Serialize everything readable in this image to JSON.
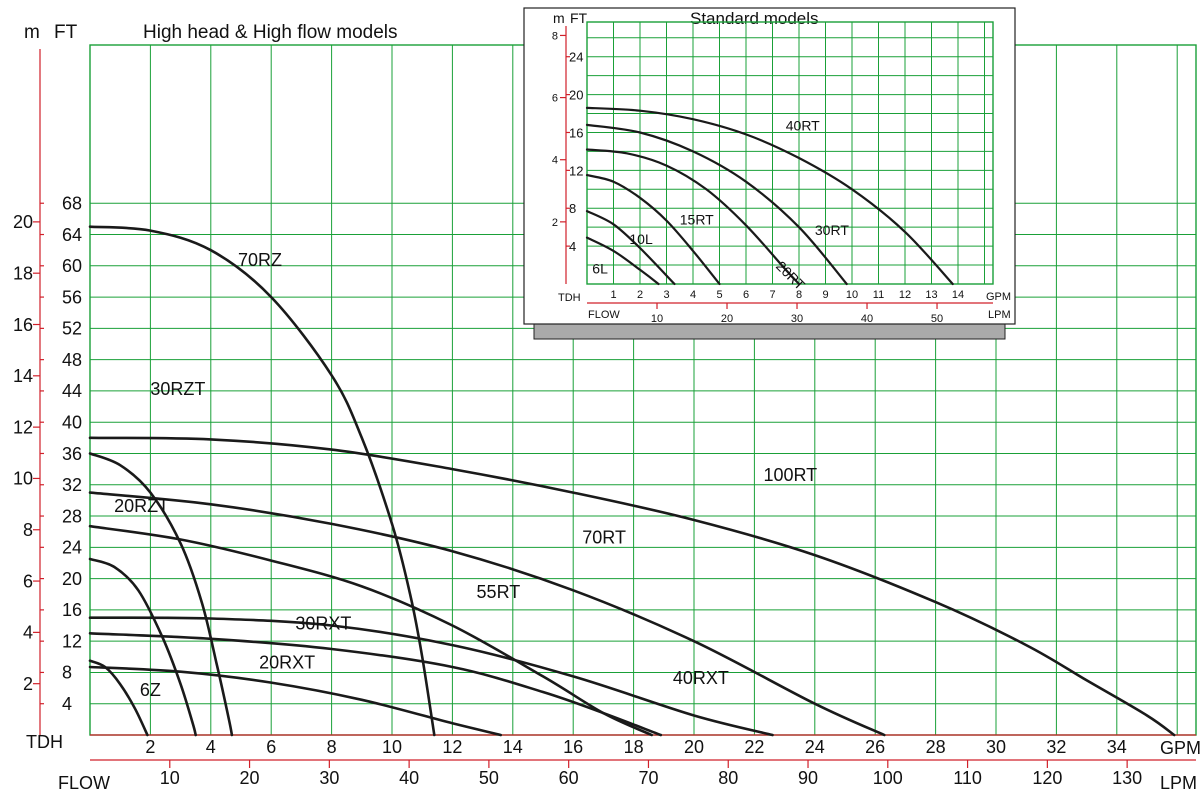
{
  "colors": {
    "grid": "#1aa038",
    "axis": "#d0202a",
    "curve": "#1a1a1a",
    "inset_shadow": "#aaaaaa"
  },
  "main": {
    "title": "High head & High flow models",
    "m_label": "m",
    "ft_label": "FT",
    "tdh_label": "TDH",
    "flow_label": "FLOW",
    "gpm_label": "GPM",
    "lpm_label": "LPM"
  },
  "inset": {
    "title": "Standard models",
    "m_label": "m",
    "ft_label": "FT",
    "tdh_label": "TDH",
    "flow_label": "FLOW",
    "gpm_label": "GPM",
    "lpm_label": "LPM"
  },
  "chart_data": [
    {
      "type": "line",
      "title": "High head & High flow models",
      "xlabel": "GPM",
      "ylabel": "FT",
      "xlim": [
        0,
        36.5
      ],
      "ylim": [
        0,
        72
      ],
      "grid": true,
      "gpm_ticks": [
        2,
        4,
        6,
        8,
        10,
        12,
        14,
        16,
        18,
        20,
        22,
        24,
        26,
        28,
        30,
        32,
        34
      ],
      "lpm_ticks": [
        10,
        20,
        30,
        40,
        50,
        60,
        70,
        80,
        90,
        100,
        110,
        120,
        130
      ],
      "ft_ticks": [
        4,
        8,
        12,
        16,
        20,
        24,
        28,
        32,
        36,
        40,
        44,
        48,
        52,
        56,
        60,
        64,
        68
      ],
      "m_ticks": [
        2,
        4,
        6,
        8,
        10,
        12,
        14,
        16,
        18,
        20
      ],
      "series": [
        {
          "name": "70RZ",
          "x": [
            0,
            2,
            4,
            6,
            8,
            9,
            10,
            10.6,
            11,
            11.4
          ],
          "y": [
            65,
            64.5,
            62,
            56,
            46,
            38,
            27,
            18,
            10,
            0
          ]
        },
        {
          "name": "100RT",
          "x": [
            0,
            4,
            8,
            12,
            16,
            20,
            24,
            28,
            31,
            33,
            35,
            35.9
          ],
          "y": [
            38,
            37.8,
            36.5,
            34,
            31,
            27.5,
            23,
            17,
            11.5,
            7,
            2.5,
            0
          ]
        },
        {
          "name": "30RZT",
          "x": [
            0,
            1,
            2,
            3,
            3.7,
            4.2,
            4.6,
            4.7
          ],
          "y": [
            36,
            34.5,
            31,
            24.5,
            17,
            9,
            2,
            0
          ]
        },
        {
          "name": "70RT",
          "x": [
            0,
            4,
            8,
            12,
            16,
            20,
            24,
            26.3
          ],
          "y": [
            31,
            29.5,
            27,
            23.5,
            18.5,
            12,
            4,
            0
          ]
        },
        {
          "name": "55RT",
          "x": [
            0,
            3,
            6,
            9,
            12,
            15,
            17,
            18.6
          ],
          "y": [
            26.7,
            25,
            22.3,
            19,
            14,
            7.5,
            2.8,
            0
          ]
        },
        {
          "name": "20RZT",
          "x": [
            0,
            0.8,
            1.6,
            2.4,
            3,
            3.4,
            3.5
          ],
          "y": [
            22.5,
            21.5,
            18.5,
            12.5,
            6.5,
            1.5,
            0
          ]
        },
        {
          "name": "40RXT",
          "x": [
            0,
            4,
            8,
            12,
            16,
            20,
            22.6
          ],
          "y": [
            15,
            14.9,
            14,
            11.5,
            7.5,
            2.5,
            0
          ]
        },
        {
          "name": "30RXT",
          "x": [
            0,
            4,
            8,
            12,
            15,
            17,
            18.9
          ],
          "y": [
            13,
            12.3,
            11,
            8.7,
            5.5,
            2.8,
            0
          ]
        },
        {
          "name": "20RXT",
          "x": [
            0,
            3,
            6,
            9,
            12,
            13.6
          ],
          "y": [
            8.7,
            8.1,
            6.7,
            4.5,
            1.5,
            0
          ]
        },
        {
          "name": "6Z",
          "x": [
            0,
            0.5,
            1,
            1.5,
            1.9
          ],
          "y": [
            9.5,
            8.7,
            6.5,
            3.3,
            0
          ]
        }
      ]
    },
    {
      "type": "line",
      "title": "Standard models",
      "xlabel": "GPM",
      "ylabel": "FT",
      "xlim": [
        0,
        15
      ],
      "ylim": [
        0,
        27.5
      ],
      "grid": true,
      "gpm_ticks": [
        1,
        2,
        3,
        4,
        5,
        6,
        7,
        8,
        9,
        10,
        11,
        12,
        13,
        14
      ],
      "lpm_ticks": [
        10,
        20,
        30,
        40,
        50
      ],
      "ft_ticks": [
        4,
        8,
        12,
        16,
        20,
        24
      ],
      "m_ticks": [
        2,
        4,
        6,
        8
      ],
      "series": [
        {
          "name": "40RT",
          "x": [
            0,
            2,
            4,
            6,
            8,
            10,
            12,
            13.8
          ],
          "y": [
            18.6,
            18.3,
            17.4,
            15.8,
            13.3,
            10,
            5.5,
            0
          ]
        },
        {
          "name": "30RT",
          "x": [
            0,
            2,
            4,
            6,
            8,
            9.8
          ],
          "y": [
            16.8,
            16,
            14,
            10.8,
            6,
            0
          ]
        },
        {
          "name": "20RT",
          "x": [
            0,
            1.5,
            3,
            4.5,
            6,
            7.5,
            8
          ],
          "y": [
            14.2,
            13.8,
            12.5,
            10,
            6.2,
            1.5,
            0
          ]
        },
        {
          "name": "15RT",
          "x": [
            0,
            1,
            2,
            3,
            4,
            5
          ],
          "y": [
            11.5,
            10.8,
            9.1,
            6.7,
            3.5,
            0
          ]
        },
        {
          "name": "10L",
          "x": [
            0,
            1,
            2,
            3.3
          ],
          "y": [
            7.7,
            6.3,
            3.8,
            0
          ]
        },
        {
          "name": "6L",
          "x": [
            0,
            1,
            2,
            2.7
          ],
          "y": [
            4.9,
            3.5,
            1.5,
            0
          ]
        }
      ]
    }
  ]
}
